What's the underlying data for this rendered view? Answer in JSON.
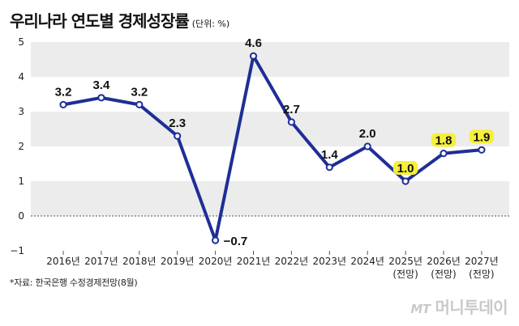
{
  "header": {
    "title": "우리나라 연도별 경제성장률",
    "unit": "(단위: %)"
  },
  "footer": {
    "source": "*자료: 한국은행 수정경제전망(8월)"
  },
  "watermark": {
    "logo": "MT",
    "text": "머니투데이"
  },
  "colors": {
    "line": "#1f2e96",
    "band": "#ececec",
    "highlight": "#f5f03a",
    "marker_fill": "#ffffff"
  },
  "chart_data": {
    "type": "line",
    "title": "우리나라 연도별 경제성장률",
    "unit": "%",
    "xlabel": "",
    "ylabel": "",
    "ylim": [
      -1,
      5
    ],
    "yticks": [
      -1,
      0,
      1,
      2,
      3,
      4,
      5
    ],
    "ytick_labels": [
      "-1",
      "0",
      "1",
      "2",
      "3",
      "4",
      "5"
    ],
    "categories": [
      "2016년",
      "2017년",
      "2018년",
      "2019년",
      "2020년",
      "2021년",
      "2022년",
      "2023년",
      "2024년",
      "2025년",
      "2026년",
      "2027년"
    ],
    "category_notes": [
      "",
      "",
      "",
      "",
      "",
      "",
      "",
      "",
      "",
      "(전망)",
      "(전망)",
      "(전망)"
    ],
    "series": [
      {
        "name": "경제성장률",
        "values": [
          3.2,
          3.4,
          3.2,
          2.3,
          -0.7,
          4.6,
          2.7,
          1.4,
          2.0,
          1.0,
          1.8,
          1.9
        ],
        "labels": [
          "3.2",
          "3.4",
          "3.2",
          "2.3",
          "-0.7",
          "4.6",
          "2.7",
          "1.4",
          "2.0",
          "1.0",
          "1.8",
          "1.9"
        ],
        "highlighted": [
          false,
          false,
          false,
          false,
          false,
          false,
          false,
          false,
          false,
          true,
          true,
          true
        ]
      }
    ],
    "zero_line": "dotted",
    "grid": "alternating horizontal bands",
    "legend": "none"
  }
}
